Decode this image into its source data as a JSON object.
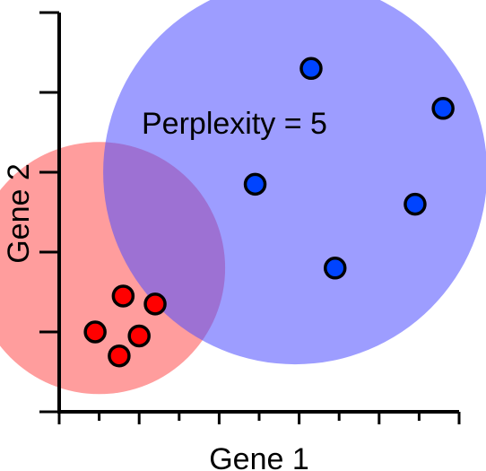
{
  "chart_data": {
    "type": "scatter",
    "xlabel": "Gene 1",
    "ylabel": "Gene 2",
    "xlim": [
      0,
      10
    ],
    "ylim": [
      0,
      10
    ],
    "x_ticks": [
      1,
      2,
      3,
      4,
      5,
      6,
      7,
      8,
      9,
      10
    ],
    "y_ticks": [
      2,
      4,
      6,
      8,
      10
    ],
    "tick_labels_shown": false,
    "grid": false,
    "annotation": "Perplexity = 5",
    "series": [
      {
        "color": "#ff0000",
        "points": [
          {
            "x": 1.6,
            "y": 2.9
          },
          {
            "x": 2.4,
            "y": 2.7
          },
          {
            "x": 0.9,
            "y": 2.0
          },
          {
            "x": 2.0,
            "y": 1.9
          },
          {
            "x": 1.5,
            "y": 1.4
          }
        ]
      },
      {
        "color": "#0044ff",
        "points": [
          {
            "x": 6.3,
            "y": 8.6
          },
          {
            "x": 9.6,
            "y": 7.6
          },
          {
            "x": 4.9,
            "y": 5.7
          },
          {
            "x": 8.9,
            "y": 5.2
          },
          {
            "x": 6.9,
            "y": 3.6
          }
        ]
      }
    ],
    "neighborhoods": [
      {
        "center_x": 1.0,
        "center_y": 3.6,
        "radius": 3.15,
        "color": "#ff4d4d",
        "opacity": 0.55
      },
      {
        "center_x": 5.9,
        "center_y": 6.0,
        "radius": 4.8,
        "color": "#4d4dff",
        "opacity": 0.55
      }
    ]
  }
}
